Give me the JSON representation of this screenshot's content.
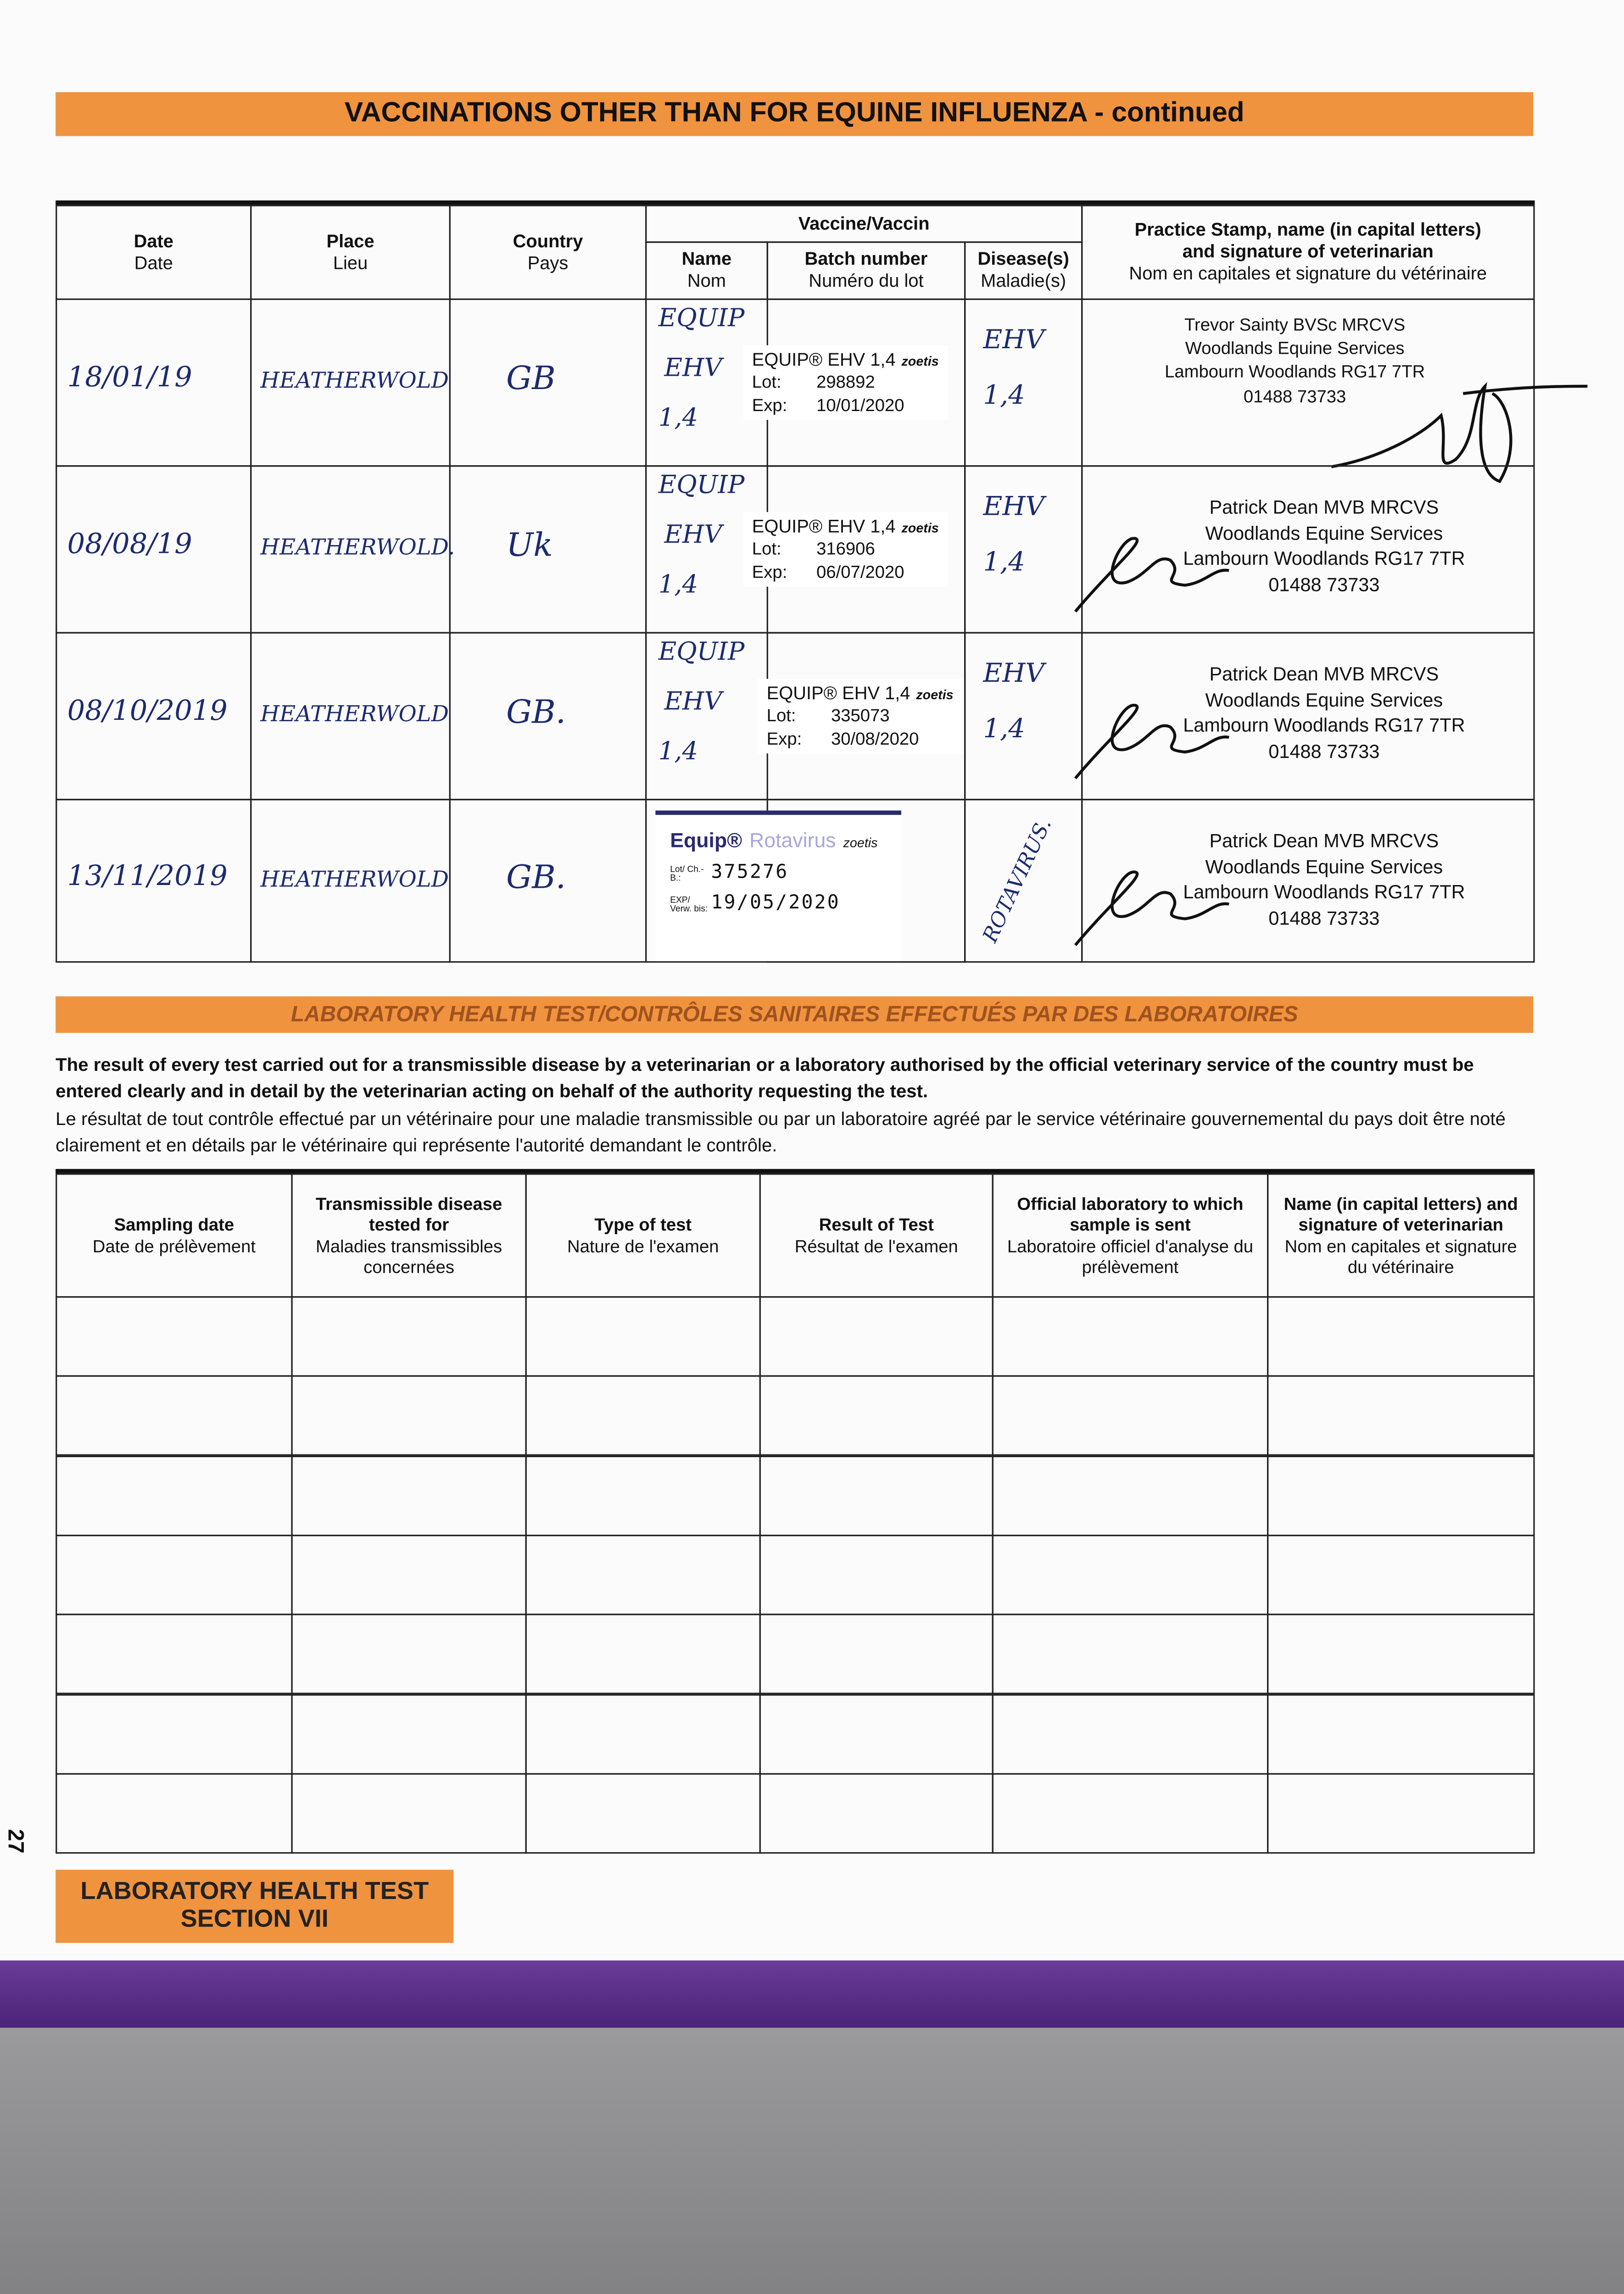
{
  "section_title": "VACCINATIONS OTHER THAN FOR EQUINE INFLUENZA - continued",
  "vacc_table": {
    "headers": {
      "date": [
        "Date",
        "Date"
      ],
      "place": [
        "Place",
        "Lieu"
      ],
      "country": [
        "Country",
        "Pays"
      ],
      "vaccine": "Vaccine/Vaccin",
      "name": [
        "Name",
        "Nom"
      ],
      "batch": [
        "Batch number",
        "Numéro du lot"
      ],
      "disease": [
        "Disease(s)",
        "Maladie(s)"
      ],
      "stamp": [
        "Practice Stamp, name (in capital letters)",
        "and signature of veterinarian",
        "Nom en capitales et signature du vétérinaire"
      ]
    },
    "rows": [
      {
        "date": "18/01/19",
        "place": "HEATHERWOLD",
        "country": "GB",
        "name_hand": [
          "EQUIP",
          "EHV",
          "1,4"
        ],
        "label_name": "EQUIP® EHV 1,4",
        "brand": "zoetis",
        "lot_label": "Lot:",
        "lot": "298892",
        "exp_label": "Exp:",
        "exp": "10/01/2020",
        "disease": [
          "EHV",
          "1,4"
        ],
        "stamp": [
          "Trevor Sainty BVSc MRCVS",
          "Woodlands Equine Services",
          "Lambourn Woodlands RG17 7TR",
          "01488 73733"
        ]
      },
      {
        "date": "08/08/19",
        "place": "HEATHERWOLD.",
        "country": "Uk",
        "name_hand": [
          "EQUIP",
          "EHV",
          "1,4"
        ],
        "label_name": "EQUIP® EHV 1,4",
        "brand": "zoetis",
        "lot_label": "Lot:",
        "lot": "316906",
        "exp_label": "Exp:",
        "exp": "06/07/2020",
        "disease": [
          "EHV",
          "1,4"
        ],
        "stamp": [
          "Patrick Dean MVB MRCVS",
          "Woodlands Equine Services",
          "Lambourn Woodlands RG17 7TR",
          "01488 73733"
        ]
      },
      {
        "date": "08/10/2019",
        "place": "HEATHERWOLD",
        "country": "GB.",
        "name_hand": [
          "EQUIP",
          "EHV",
          "1,4"
        ],
        "label_name": "EQUIP® EHV 1,4",
        "brand": "zoetis",
        "lot_label": "Lot:",
        "lot": "335073",
        "exp_label": "Exp:",
        "exp": "30/08/2020",
        "disease": [
          "EHV",
          "1,4"
        ],
        "stamp": [
          "Patrick Dean MVB MRCVS",
          "Woodlands Equine Services",
          "Lambourn Woodlands RG17 7TR",
          "01488 73733"
        ]
      },
      {
        "date": "13/11/2019",
        "place": "HEATHERWOLD",
        "country": "GB.",
        "name_hand": [],
        "label_name": "Equip®",
        "label_name2": "Rotavirus",
        "brand": "zoetis",
        "lot_label": "Lot/ Ch.-B.:",
        "lot": "375276",
        "exp_label": "EXP/ Verw. bis:",
        "exp": "19/05/2020",
        "disease": [
          "ROTAVIRUS."
        ],
        "stamp": [
          "Patrick Dean MVB MRCVS",
          "Woodlands Equine Services",
          "Lambourn Woodlands RG17 7TR",
          "01488 73733"
        ]
      }
    ]
  },
  "lab_section_title": "LABORATORY HEALTH TEST/CONTRÔLES SANITAIRES EFFECTUÉS PAR DES LABORATOIRES",
  "intro_en": "The result of every test carried out for a transmissible disease by a veterinarian or a laboratory authorised by the official veterinary service of the country must be entered clearly and in detail by the veterinarian acting on behalf of the authority requesting the test.",
  "intro_fr": "Le résultat de tout contrôle effectué par un vétérinaire pour une maladie transmissible ou par un laboratoire agréé par le service vétérinaire gouvernemental du pays doit être noté clairement et en détails par le vétérinaire qui représente l'autorité demandant le contrôle.",
  "lab_table": {
    "headers": [
      {
        "en": "Sampling date",
        "fr": "Date de prélèvement"
      },
      {
        "en": "Transmissible disease tested for",
        "fr": "Maladies transmissibles concernées"
      },
      {
        "en": "Type of test",
        "fr": "Nature de l'examen"
      },
      {
        "en": "Result of Test",
        "fr": "Résultat de l'examen"
      },
      {
        "en": "Official laboratory to which sample is sent",
        "fr": "Laboratoire officiel d'analyse du prélèvement"
      },
      {
        "en": "Name (in capital letters) and signature of veterinarian",
        "fr": "Nom en capitales et signature du vétérinaire"
      }
    ],
    "empty_rows": 7
  },
  "page_number": "27",
  "footer_tab": [
    "LABORATORY HEALTH TEST",
    "SECTION VII"
  ],
  "colors": {
    "orange": "#f0933f",
    "purple": "#5a2d88",
    "ink": "#1c2a6e"
  }
}
